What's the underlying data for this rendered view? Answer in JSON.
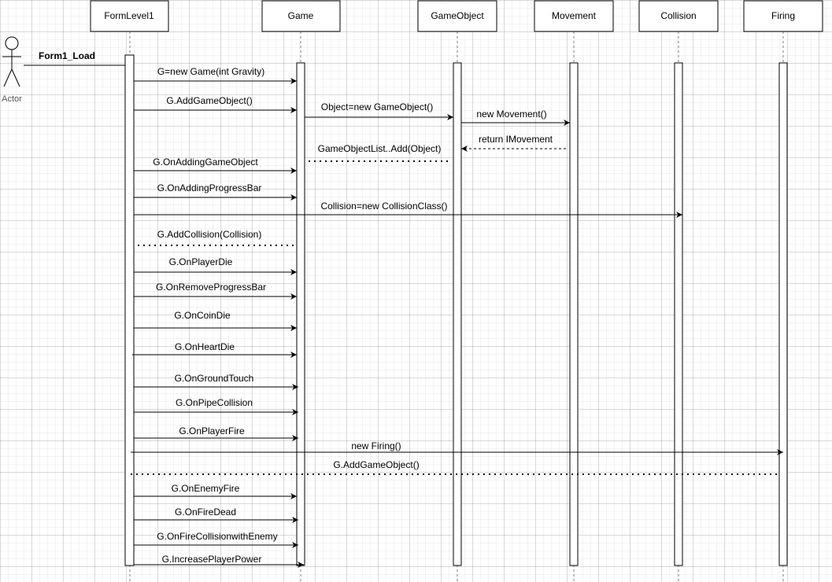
{
  "actor": {
    "label": "Actor"
  },
  "lifelines": [
    {
      "id": "formlevel1",
      "label": "FormLevel1"
    },
    {
      "id": "game",
      "label": "Game"
    },
    {
      "id": "gameobject",
      "label": "GameObject"
    },
    {
      "id": "movement",
      "label": "Movement"
    },
    {
      "id": "collision",
      "label": "Collision"
    },
    {
      "id": "firing",
      "label": "Firing"
    }
  ],
  "messages": [
    {
      "label": "Form1_Load",
      "from": "actor",
      "to": "formlevel1",
      "style": "solid"
    },
    {
      "label": "G=new Game(int Gravity)",
      "from": "formlevel1",
      "to": "game",
      "style": "solid"
    },
    {
      "label": "G.AddGameObject()",
      "from": "formlevel1",
      "to": "game",
      "style": "solid"
    },
    {
      "label": "Object=new GameObject()",
      "from": "game",
      "to": "gameobject",
      "style": "solid"
    },
    {
      "label": "new Movement()",
      "from": "gameobject",
      "to": "movement",
      "style": "solid"
    },
    {
      "label": "return IMovement",
      "from": "movement",
      "to": "gameobject",
      "style": "dashed"
    },
    {
      "label": "GameObjectList..Add(Object)",
      "from": "game",
      "to": "gameobject",
      "style": "dotted"
    },
    {
      "label": "G.OnAddingGameObject",
      "from": "formlevel1",
      "to": "game",
      "style": "solid"
    },
    {
      "label": "G.OnAddingProgressBar",
      "from": "formlevel1",
      "to": "game",
      "style": "solid"
    },
    {
      "label": "Collision=new CollisionClass()",
      "from": "formlevel1",
      "to": "collision",
      "style": "solid"
    },
    {
      "label": "G.AddCollision(Collision)",
      "from": "formlevel1",
      "to": "game",
      "style": "dotted"
    },
    {
      "label": "G.OnPlayerDie",
      "from": "formlevel1",
      "to": "game",
      "style": "solid"
    },
    {
      "label": "G.OnRemoveProgressBar",
      "from": "formlevel1",
      "to": "game",
      "style": "solid"
    },
    {
      "label": "G.OnCoinDie",
      "from": "formlevel1",
      "to": "game",
      "style": "solid"
    },
    {
      "label": "G.OnHeartDie",
      "from": "formlevel1",
      "to": "game",
      "style": "solid"
    },
    {
      "label": "G.OnGroundTouch",
      "from": "formlevel1",
      "to": "game",
      "style": "solid"
    },
    {
      "label": "G.OnPipeCollision",
      "from": "formlevel1",
      "to": "game",
      "style": "solid"
    },
    {
      "label": "G.OnPlayerFire",
      "from": "formlevel1",
      "to": "game",
      "style": "solid"
    },
    {
      "label": "new Firing()",
      "from": "formlevel1",
      "to": "firing",
      "style": "solid"
    },
    {
      "label": "G.AddGameObject()",
      "from": "formlevel1",
      "to": "firing",
      "style": "dotted"
    },
    {
      "label": "G.OnEnemyFire",
      "from": "formlevel1",
      "to": "game",
      "style": "solid"
    },
    {
      "label": "G.OnFireDead",
      "from": "formlevel1",
      "to": "game",
      "style": "solid"
    },
    {
      "label": "G.OnFireCollisionwithEnemy",
      "from": "formlevel1",
      "to": "game",
      "style": "solid"
    },
    {
      "label": "G.IncreasePlayerPower",
      "from": "formlevel1",
      "to": "game",
      "style": "solid"
    }
  ]
}
